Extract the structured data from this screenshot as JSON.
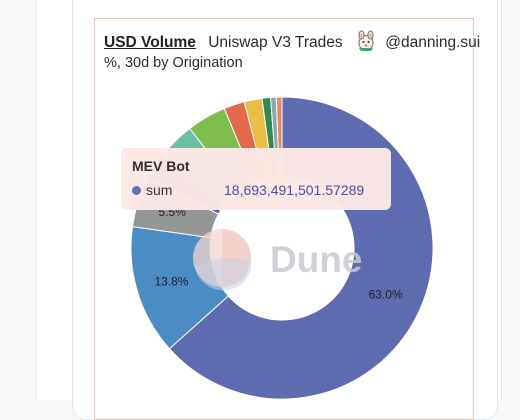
{
  "header": {
    "title": "USD Volume",
    "subtitle": "Uniswap V3 Trades",
    "author": "@danning.sui",
    "subtitle_line": "%, 30d by Origination"
  },
  "watermark": "Dune",
  "tooltip": {
    "title": "MEV Bot",
    "series_label": "sum",
    "value": "18,693,491,501.57289",
    "color": "#5f6bb0"
  },
  "chart_data": {
    "type": "pie",
    "donut": true,
    "categories": [
      "MEV Bot",
      "",
      "",
      "",
      "",
      "",
      "",
      "",
      "",
      "",
      ""
    ],
    "values": [
      63.0,
      13.8,
      5.5,
      2.6,
      4.1,
      4.2,
      2.2,
      1.9,
      0.9,
      0.6,
      0.6
    ],
    "labels": [
      "63.0%",
      "13.8%",
      "5.5%",
      "",
      "",
      "",
      "",
      "",
      "",
      "",
      ""
    ],
    "colors": [
      "#5f6bb0",
      "#4a8cc3",
      "#969696",
      "#6b5ea8",
      "#6cbfa4",
      "#7ebd4e",
      "#e4694c",
      "#eabe44",
      "#2f8a53",
      "#90a3b3",
      "#e08a5e"
    ]
  }
}
